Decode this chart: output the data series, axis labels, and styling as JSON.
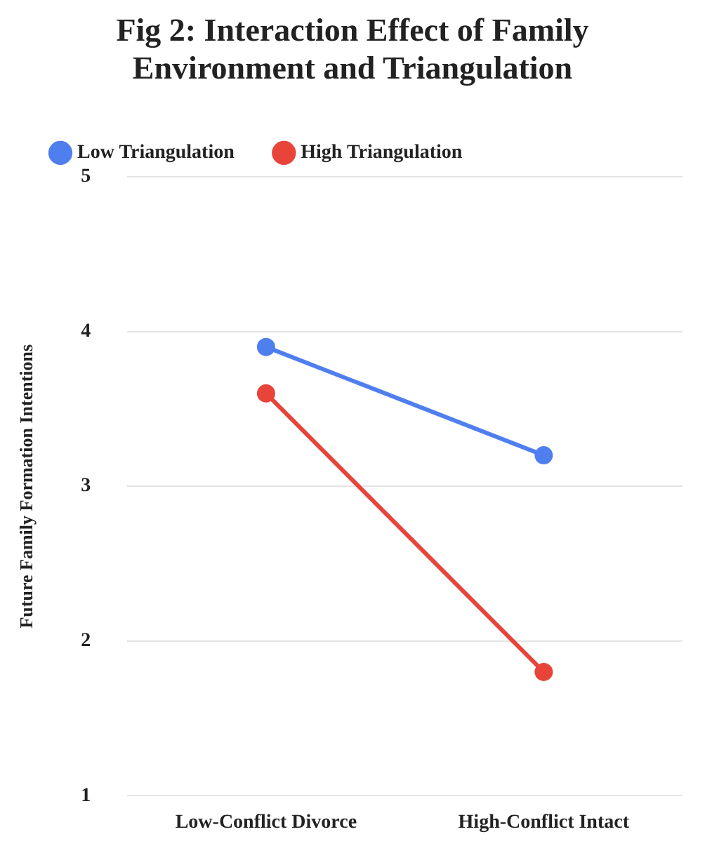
{
  "chart_data": {
    "type": "line",
    "title": "Fig 2: Interaction Effect of Family Environment and Triangulation",
    "ylabel": "Future Family Formation Intentions",
    "categories": [
      "Low-Conflict Divorce",
      "High-Conflict Intact"
    ],
    "series": [
      {
        "name": "Low Triangulation",
        "color": "#4f7fef",
        "values": [
          3.9,
          3.2
        ]
      },
      {
        "name": "High Triangulation",
        "color": "#e8443a",
        "values": [
          3.6,
          1.8
        ]
      }
    ],
    "ylim": [
      1,
      5
    ],
    "yticks": [
      1,
      2,
      3,
      4,
      5
    ],
    "grid": "y",
    "legend": "top",
    "marker": "circle",
    "line_style": "solid"
  }
}
